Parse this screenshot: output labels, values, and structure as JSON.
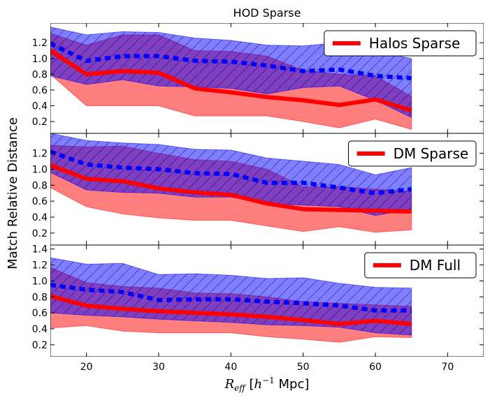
{
  "chart_data": [
    {
      "type": "line",
      "title": "HOD Sparse",
      "legend": {
        "label": "Halos Sparse",
        "placement": "top-right"
      },
      "x": [
        15,
        20,
        25,
        30,
        35,
        40,
        45,
        50,
        55,
        60,
        65
      ],
      "ylim": [
        0.05,
        1.45
      ],
      "series": [
        {
          "name": "Halos Sparse",
          "color": "#ff0000",
          "style": "solid",
          "values": [
            1.1,
            0.8,
            0.84,
            0.82,
            0.62,
            0.57,
            0.51,
            0.47,
            0.41,
            0.48,
            0.34
          ],
          "band_lower": [
            0.8,
            0.4,
            0.4,
            0.4,
            0.27,
            0.27,
            0.27,
            0.2,
            0.12,
            0.23,
            0.1
          ],
          "band_upper": [
            1.32,
            1.17,
            1.3,
            1.3,
            1.1,
            1.09,
            1.03,
            0.85,
            0.8,
            0.78,
            0.52
          ]
        },
        {
          "color": "#0000ff",
          "style": "dashed",
          "values": [
            1.19,
            0.97,
            1.03,
            1.03,
            0.97,
            0.96,
            0.91,
            0.84,
            0.86,
            0.78,
            0.75
          ],
          "band_lower": [
            0.78,
            0.67,
            0.73,
            0.65,
            0.64,
            0.62,
            0.55,
            0.63,
            0.65,
            0.47,
            0.25
          ],
          "band_upper": [
            1.4,
            1.3,
            1.34,
            1.33,
            1.26,
            1.23,
            1.17,
            1.16,
            1.2,
            1.09,
            1.0
          ]
        }
      ]
    },
    {
      "type": "line",
      "legend": {
        "label": "DM Sparse",
        "placement": "top-right"
      },
      "x": [
        15,
        20,
        25,
        30,
        35,
        40,
        45,
        50,
        55,
        60,
        65
      ],
      "ylim": [
        0.05,
        1.45
      ],
      "series": [
        {
          "name": "DM Sparse",
          "color": "#ff0000",
          "style": "solid",
          "values": [
            1.05,
            0.88,
            0.85,
            0.76,
            0.71,
            0.68,
            0.57,
            0.5,
            0.49,
            0.48,
            0.47
          ],
          "band_lower": [
            0.77,
            0.53,
            0.44,
            0.39,
            0.36,
            0.36,
            0.29,
            0.22,
            0.28,
            0.21,
            0.24
          ],
          "band_upper": [
            1.3,
            1.28,
            1.29,
            1.2,
            1.12,
            1.1,
            1.0,
            0.78,
            0.78,
            0.75,
            0.72
          ]
        },
        {
          "color": "#0000ff",
          "style": "dashed",
          "values": [
            1.22,
            1.06,
            1.02,
            1.0,
            0.95,
            0.94,
            0.83,
            0.83,
            0.77,
            0.7,
            0.75
          ],
          "band_lower": [
            0.96,
            0.74,
            0.71,
            0.7,
            0.65,
            0.65,
            0.57,
            0.55,
            0.53,
            0.42,
            0.5
          ],
          "band_upper": [
            1.45,
            1.36,
            1.33,
            1.31,
            1.25,
            1.24,
            1.14,
            1.1,
            1.06,
            0.93,
            1.02
          ]
        }
      ]
    },
    {
      "type": "line",
      "xlabel": "R_eff [h^-1 Mpc]",
      "legend": {
        "label": "DM Full",
        "placement": "top-right"
      },
      "x": [
        15,
        20,
        25,
        30,
        35,
        40,
        45,
        50,
        55,
        60,
        65
      ],
      "xlim": [
        15,
        75
      ],
      "xticks": [
        20,
        30,
        40,
        50,
        60,
        70
      ],
      "ylim": [
        0.05,
        1.45
      ],
      "series": [
        {
          "name": "DM Full",
          "color": "#ff0000",
          "style": "solid",
          "values": [
            0.81,
            0.69,
            0.65,
            0.62,
            0.6,
            0.58,
            0.55,
            0.51,
            0.46,
            0.5,
            0.46
          ],
          "band_lower": [
            0.41,
            0.44,
            0.37,
            0.35,
            0.35,
            0.35,
            0.3,
            0.27,
            0.23,
            0.3,
            0.29
          ],
          "band_upper": [
            1.17,
            0.98,
            0.93,
            0.91,
            0.85,
            0.84,
            0.8,
            0.74,
            0.72,
            0.7,
            0.68
          ]
        },
        {
          "color": "#0000ff",
          "style": "dashed",
          "values": [
            0.95,
            0.89,
            0.86,
            0.76,
            0.77,
            0.77,
            0.74,
            0.72,
            0.69,
            0.63,
            0.63
          ],
          "band_lower": [
            0.6,
            0.57,
            0.55,
            0.52,
            0.5,
            0.48,
            0.45,
            0.44,
            0.42,
            0.35,
            0.32
          ],
          "band_upper": [
            1.29,
            1.21,
            1.22,
            1.08,
            1.09,
            1.07,
            1.03,
            1.04,
            0.97,
            0.92,
            0.91
          ]
        }
      ]
    }
  ],
  "shared": {
    "ylabel": "Match Relative Distance",
    "xlabel_main": "R",
    "xlabel_sub": "eff",
    "xlabel_unit_open": " [",
    "xlabel_h": "h",
    "xlabel_sup": "−1",
    "xlabel_unit_close": " Mpc]",
    "yticks_top": [
      "0.2",
      "0.4",
      "0.6",
      "0.8",
      "1.0",
      "1.2"
    ],
    "yticks_bottom": [
      "0.2",
      "0.4",
      "0.6",
      "0.8",
      "1.0",
      "1.2",
      "1.4"
    ],
    "xtick_labels": [
      "20",
      "30",
      "40",
      "50",
      "60",
      "70"
    ]
  }
}
